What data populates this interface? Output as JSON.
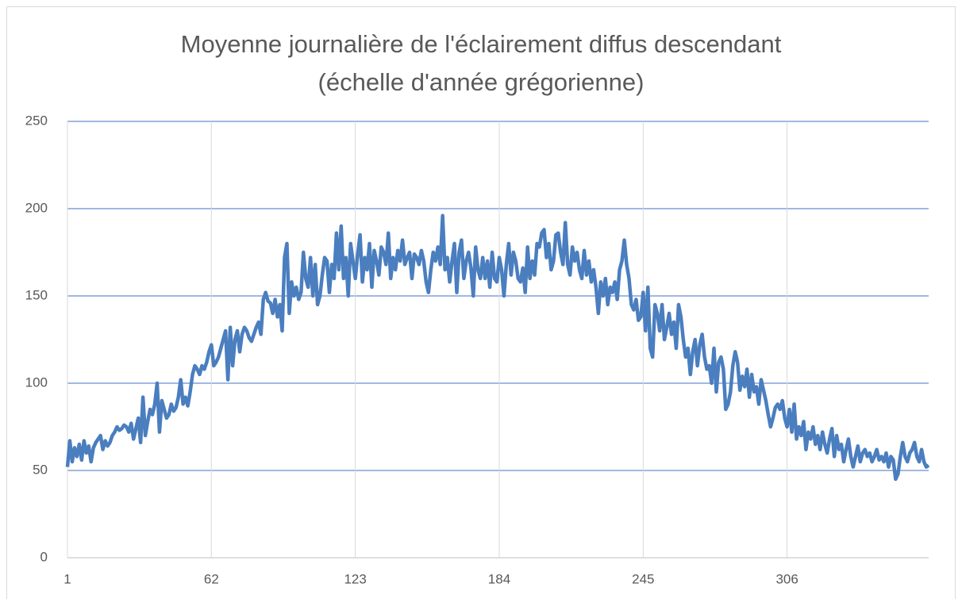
{
  "chart_data": {
    "type": "line",
    "title": "Moyenne journalière de l'éclairement diffus descendant (échelle d'année grégorienne)",
    "xlim": [
      1,
      366
    ],
    "xticks": [
      1,
      62,
      123,
      184,
      245,
      306
    ],
    "ylim": [
      0,
      250
    ],
    "yticks": [
      0,
      50,
      100,
      150,
      200,
      250
    ],
    "grid": true,
    "x": [
      1,
      2,
      3,
      4,
      5,
      6,
      7,
      8,
      9,
      10,
      11,
      12,
      13,
      14,
      15,
      16,
      17,
      18,
      19,
      20,
      21,
      22,
      23,
      24,
      25,
      26,
      27,
      28,
      29,
      30,
      31,
      32,
      33,
      34,
      35,
      36,
      37,
      38,
      39,
      40,
      41,
      42,
      43,
      44,
      45,
      46,
      47,
      48,
      49,
      50,
      51,
      52,
      53,
      54,
      55,
      56,
      57,
      58,
      59,
      60,
      61,
      62,
      63,
      64,
      65,
      66,
      67,
      68,
      69,
      70,
      71,
      72,
      73,
      74,
      75,
      76,
      77,
      78,
      79,
      80,
      81,
      82,
      83,
      84,
      85,
      86,
      87,
      88,
      89,
      90,
      91,
      92,
      93,
      94,
      95,
      96,
      97,
      98,
      99,
      100,
      101,
      102,
      103,
      104,
      105,
      106,
      107,
      108,
      109,
      110,
      111,
      112,
      113,
      114,
      115,
      116,
      117,
      118,
      119,
      120,
      121,
      122,
      123,
      124,
      125,
      126,
      127,
      128,
      129,
      130,
      131,
      132,
      133,
      134,
      135,
      136,
      137,
      138,
      139,
      140,
      141,
      142,
      143,
      144,
      145,
      146,
      147,
      148,
      149,
      150,
      151,
      152,
      153,
      154,
      155,
      156,
      157,
      158,
      159,
      160,
      161,
      162,
      163,
      164,
      165,
      166,
      167,
      168,
      169,
      170,
      171,
      172,
      173,
      174,
      175,
      176,
      177,
      178,
      179,
      180,
      181,
      182,
      183,
      184,
      185,
      186,
      187,
      188,
      189,
      190,
      191,
      192,
      193,
      194,
      195,
      196,
      197,
      198,
      199,
      200,
      201,
      202,
      203,
      204,
      205,
      206,
      207,
      208,
      209,
      210,
      211,
      212,
      213,
      214,
      215,
      216,
      217,
      218,
      219,
      220,
      221,
      222,
      223,
      224,
      225,
      226,
      227,
      228,
      229,
      230,
      231,
      232,
      233,
      234,
      235,
      236,
      237,
      238,
      239,
      240,
      241,
      242,
      243,
      244,
      245,
      246,
      247,
      248,
      249,
      250,
      251,
      252,
      253,
      254,
      255,
      256,
      257,
      258,
      259,
      260,
      261,
      262,
      263,
      264,
      265,
      266,
      267,
      268,
      269,
      270,
      271,
      272,
      273,
      274,
      275,
      276,
      277,
      278,
      279,
      280,
      281,
      282,
      283,
      284,
      285,
      286,
      287,
      288,
      289,
      290,
      291,
      292,
      293,
      294,
      295,
      296,
      297,
      298,
      299,
      300,
      301,
      302,
      303,
      304,
      305,
      306,
      307,
      308,
      309,
      310,
      311,
      312,
      313,
      314,
      315,
      316,
      317,
      318,
      319,
      320,
      321,
      322,
      323,
      324,
      325,
      326,
      327,
      328,
      329,
      330,
      331,
      332,
      333,
      334,
      335,
      336,
      337,
      338,
      339,
      340,
      341,
      342,
      343,
      344,
      345,
      346,
      347,
      348,
      349,
      350,
      351,
      352,
      353,
      354,
      355,
      356,
      357,
      358,
      359,
      360,
      361,
      362,
      363,
      364,
      365,
      366
    ],
    "series": [
      {
        "color": "#4a7ebf",
        "values": [
          52,
          67,
          55,
          63,
          58,
          65,
          56,
          67,
          60,
          64,
          55,
          63,
          66,
          68,
          70,
          62,
          67,
          64,
          66,
          70,
          72,
          75,
          73,
          74,
          76,
          75,
          72,
          77,
          68,
          74,
          80,
          66,
          92,
          70,
          78,
          85,
          82,
          88,
          100,
          72,
          90,
          85,
          80,
          82,
          88,
          84,
          86,
          92,
          102,
          88,
          92,
          87,
          95,
          105,
          110,
          108,
          105,
          110,
          108,
          112,
          118,
          122,
          110,
          112,
          115,
          120,
          125,
          130,
          102,
          132,
          110,
          125,
          130,
          118,
          128,
          132,
          130,
          126,
          124,
          128,
          132,
          135,
          128,
          148,
          152,
          147,
          146,
          140,
          148,
          138,
          145,
          130,
          172,
          180,
          140,
          158,
          150,
          155,
          148,
          152,
          175,
          160,
          155,
          172,
          150,
          168,
          145,
          150,
          162,
          172,
          170,
          152,
          168,
          160,
          186,
          165,
          190,
          160,
          172,
          150,
          180,
          170,
          160,
          174,
          185,
          158,
          172,
          165,
          180,
          155,
          176,
          170,
          162,
          178,
          175,
          168,
          186,
          160,
          172,
          165,
          176,
          170,
          182,
          168,
          172,
          175,
          160,
          174,
          172,
          168,
          176,
          170,
          158,
          152,
          165,
          175,
          170,
          178,
          168,
          196,
          165,
          172,
          158,
          170,
          180,
          152,
          175,
          182,
          160,
          170,
          175,
          166,
          150,
          178,
          165,
          160,
          172,
          160,
          170,
          155,
          175,
          160,
          158,
          172,
          165,
          150,
          168,
          180,
          162,
          175,
          170,
          160,
          158,
          166,
          152,
          178,
          160,
          170,
          162,
          180,
          178,
          186,
          188,
          172,
          180,
          165,
          170,
          185,
          186,
          175,
          168,
          192,
          168,
          162,
          178,
          170,
          175,
          165,
          160,
          176,
          162,
          170,
          158,
          165,
          155,
          140,
          158,
          150,
          160,
          145,
          155,
          152,
          158,
          148,
          165,
          170,
          182,
          168,
          160,
          145,
          142,
          148,
          136,
          138,
          152,
          130,
          155,
          120,
          115,
          145,
          140,
          130,
          145,
          125,
          132,
          140,
          128,
          135,
          120,
          145,
          138,
          125,
          115,
          120,
          105,
          118,
          125,
          110,
          122,
          128,
          115,
          108,
          110,
          100,
          120,
          95,
          112,
          115,
          108,
          85,
          88,
          95,
          110,
          118,
          112,
          96,
          104,
          98,
          108,
          92,
          105,
          95,
          98,
          88,
          102,
          96,
          90,
          82,
          75,
          80,
          86,
          88,
          85,
          90,
          80,
          75,
          85,
          72,
          88,
          68,
          75,
          70,
          78,
          62,
          72,
          68,
          75,
          65,
          70,
          62,
          72,
          65,
          60,
          68,
          74,
          58,
          70,
          62,
          65,
          55,
          62,
          68,
          58,
          52,
          58,
          64,
          55,
          60,
          62,
          58,
          60,
          55,
          58,
          62,
          56,
          58,
          55,
          60,
          52,
          58,
          56,
          45,
          48,
          58,
          66,
          58,
          55,
          60,
          62,
          66,
          58,
          55,
          62,
          55,
          52,
          53
        ]
      }
    ]
  }
}
